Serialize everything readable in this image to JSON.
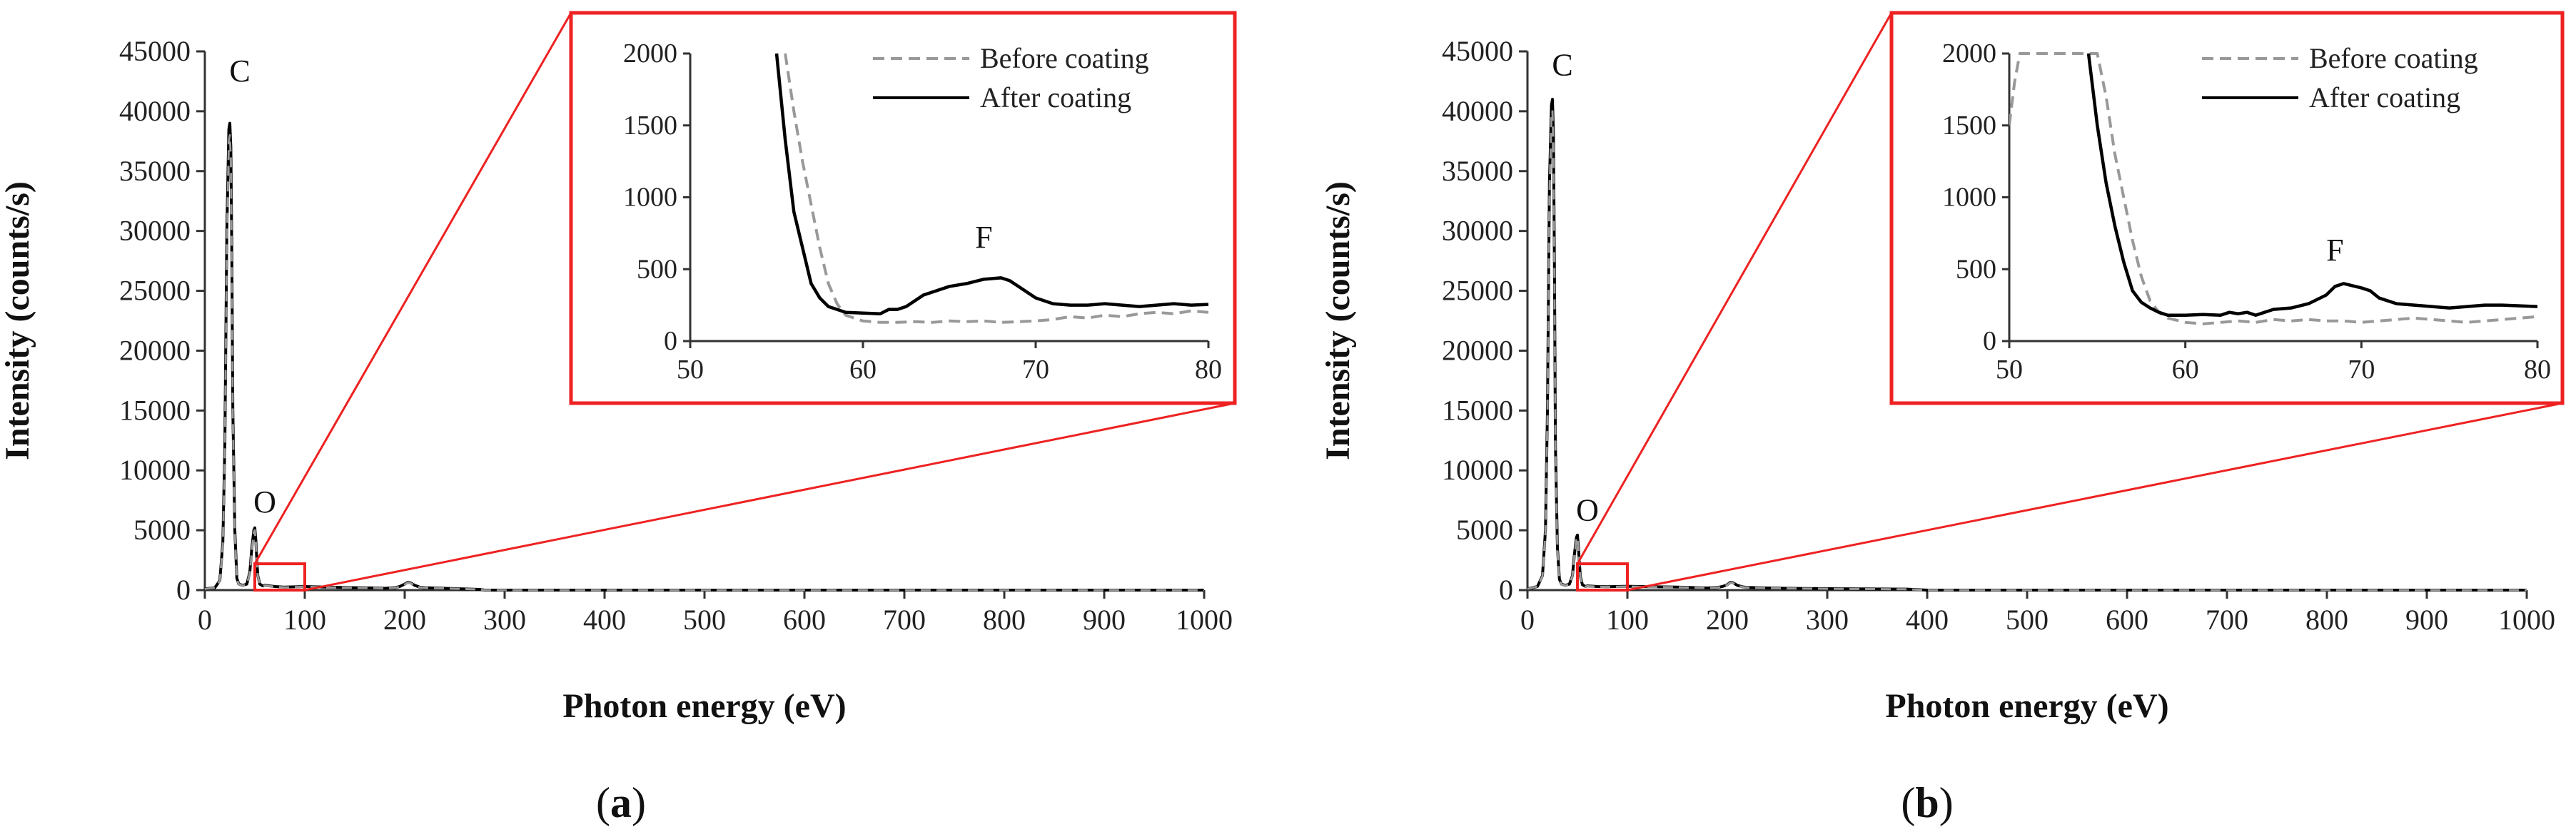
{
  "colors": {
    "after": "#000000",
    "before": "#999999",
    "zoom": "#ee2222",
    "axis": "#333333"
  },
  "chart_data": [
    {
      "type": "line",
      "panel": "a",
      "panel_label": "a",
      "xlabel": "Photon energy (eV)",
      "ylabel": "Intensity (counts/s)",
      "xlim": [
        0,
        1000
      ],
      "ylim": [
        0,
        45000
      ],
      "xticks": [
        0,
        100,
        200,
        300,
        400,
        500,
        600,
        700,
        800,
        900,
        1000
      ],
      "yticks": [
        0,
        5000,
        10000,
        15000,
        20000,
        25000,
        30000,
        35000,
        40000,
        45000
      ],
      "annotations": [
        {
          "label": "C",
          "x": 35,
          "y": 42500
        },
        {
          "label": "O",
          "x": 60,
          "y": 6500
        }
      ],
      "zoom_box": {
        "x": [
          50,
          100
        ],
        "y": [
          0,
          2200
        ]
      },
      "series": [
        {
          "name": "After coating",
          "style": "solid",
          "x": [
            0,
            10,
            15,
            18,
            20,
            22,
            24,
            25,
            26,
            27,
            28,
            30,
            32,
            34,
            38,
            42,
            45,
            47,
            49,
            50,
            51,
            52,
            53,
            55,
            58,
            60,
            70,
            80,
            100,
            120,
            150,
            170,
            180,
            190,
            195,
            200,
            203,
            206,
            210,
            215,
            220,
            240,
            260,
            275,
            280,
            1000
          ],
          "y": [
            100,
            200,
            800,
            4000,
            12000,
            30000,
            38500,
            39000,
            37000,
            28000,
            15000,
            5000,
            1000,
            500,
            400,
            500,
            1500,
            3500,
            5000,
            5200,
            4200,
            2500,
            1200,
            500,
            350,
            400,
            300,
            250,
            300,
            250,
            200,
            180,
            150,
            200,
            300,
            500,
            650,
            600,
            400,
            250,
            200,
            150,
            100,
            60,
            0,
            0
          ]
        },
        {
          "name": "Before coating",
          "style": "dashed",
          "x": [
            0,
            10,
            15,
            18,
            20,
            22,
            24,
            25,
            26,
            27,
            28,
            30,
            32,
            34,
            38,
            42,
            45,
            47,
            49,
            50,
            51,
            52,
            53,
            55,
            58,
            60,
            70,
            80,
            100,
            120,
            150,
            170,
            180,
            190,
            195,
            200,
            203,
            206,
            210,
            215,
            220,
            240,
            260,
            275,
            280,
            1000
          ],
          "y": [
            100,
            200,
            750,
            3800,
            11500,
            29000,
            37500,
            38000,
            36000,
            27000,
            14500,
            4800,
            950,
            480,
            380,
            480,
            1400,
            3300,
            4800,
            5000,
            4000,
            2400,
            1150,
            480,
            330,
            380,
            280,
            230,
            280,
            230,
            190,
            170,
            140,
            190,
            280,
            470,
            620,
            570,
            380,
            240,
            190,
            140,
            90,
            55,
            0,
            0
          ]
        }
      ],
      "inset": {
        "xlim": [
          50,
          80
        ],
        "ylim": [
          0,
          2000
        ],
        "xticks": [
          50,
          60,
          70,
          80
        ],
        "yticks": [
          0,
          500,
          1000,
          1500,
          2000
        ],
        "legend": [
          "Before coating",
          "After coating"
        ],
        "annotation": {
          "label": "F",
          "x": 67,
          "y": 650
        },
        "series": [
          {
            "name": "Before coating",
            "style": "dashed",
            "x": [
              55.5,
              56,
              56.5,
              57,
              57.5,
              58,
              58.5,
              59,
              60,
              61,
              62,
              63,
              64,
              65,
              66,
              67,
              68,
              69,
              70,
              71,
              72,
              73,
              74,
              75,
              76,
              77,
              78,
              79,
              80
            ],
            "y": [
              2000,
              1600,
              1250,
              950,
              650,
              400,
              260,
              180,
              140,
              130,
              130,
              135,
              130,
              140,
              135,
              140,
              130,
              135,
              140,
              150,
              170,
              160,
              180,
              170,
              190,
              200,
              190,
              210,
              200
            ]
          },
          {
            "name": "After coating",
            "style": "solid",
            "x": [
              55,
              55.5,
              56,
              56.5,
              57,
              57.5,
              58,
              58.5,
              59,
              60,
              61,
              61.5,
              62,
              62.5,
              63,
              63.5,
              64,
              65,
              66,
              67,
              68,
              68.5,
              69,
              70,
              71,
              72,
              73,
              74,
              75,
              76,
              77,
              78,
              79,
              80
            ],
            "y": [
              2000,
              1400,
              900,
              650,
              400,
              300,
              240,
              220,
              200,
              195,
              190,
              220,
              220,
              240,
              280,
              320,
              340,
              380,
              400,
              430,
              440,
              420,
              380,
              300,
              260,
              250,
              250,
              260,
              250,
              240,
              250,
              260,
              250,
              255
            ]
          }
        ]
      }
    },
    {
      "type": "line",
      "panel": "b",
      "panel_label": "b",
      "xlabel": "Photon energy (eV)",
      "ylabel": "Intensity (counts/s)",
      "xlim": [
        0,
        1000
      ],
      "ylim": [
        0,
        45000
      ],
      "xticks": [
        0,
        100,
        200,
        300,
        400,
        500,
        600,
        700,
        800,
        900,
        1000
      ],
      "yticks": [
        0,
        5000,
        10000,
        15000,
        20000,
        25000,
        30000,
        35000,
        40000,
        45000
      ],
      "annotations": [
        {
          "label": "C",
          "x": 35,
          "y": 43000
        },
        {
          "label": "O",
          "x": 60,
          "y": 5800
        }
      ],
      "zoom_box": {
        "x": [
          50,
          100
        ],
        "y": [
          0,
          2200
        ]
      },
      "series": [
        {
          "name": "After coating",
          "style": "solid",
          "x": [
            0,
            10,
            15,
            18,
            20,
            22,
            24,
            25,
            26,
            27,
            28,
            30,
            32,
            34,
            38,
            42,
            45,
            47,
            49,
            50,
            51,
            52,
            53,
            55,
            58,
            60,
            70,
            80,
            100,
            120,
            150,
            170,
            180,
            190,
            195,
            200,
            203,
            206,
            210,
            215,
            220,
            240,
            260,
            300,
            380,
            400,
            1000
          ],
          "y": [
            100,
            300,
            1200,
            5000,
            15000,
            34000,
            40500,
            41000,
            38000,
            27000,
            12000,
            3500,
            900,
            500,
            400,
            500,
            1200,
            3000,
            4400,
            4600,
            3600,
            2200,
            1100,
            450,
            300,
            350,
            300,
            280,
            320,
            280,
            250,
            200,
            180,
            220,
            300,
            450,
            650,
            600,
            400,
            280,
            220,
            180,
            150,
            120,
            80,
            0,
            0
          ]
        },
        {
          "name": "Before coating",
          "style": "dashed",
          "x": [
            0,
            10,
            15,
            18,
            20,
            22,
            24,
            25,
            26,
            27,
            28,
            30,
            32,
            34,
            38,
            42,
            45,
            47,
            49,
            50,
            51,
            52,
            53,
            55,
            58,
            60,
            70,
            80,
            100,
            120,
            150,
            170,
            180,
            190,
            195,
            200,
            203,
            206,
            210,
            215,
            220,
            240,
            260,
            300,
            380,
            400,
            1000
          ],
          "y": [
            100,
            300,
            1150,
            4800,
            14500,
            33000,
            39500,
            40000,
            37000,
            26000,
            11500,
            3300,
            850,
            480,
            380,
            480,
            1150,
            2900,
            4200,
            4400,
            3400,
            2100,
            1050,
            430,
            280,
            330,
            280,
            260,
            300,
            260,
            240,
            190,
            170,
            210,
            280,
            430,
            620,
            570,
            380,
            260,
            210,
            170,
            140,
            110,
            70,
            0,
            0
          ]
        }
      ],
      "inset": {
        "xlim": [
          50,
          80
        ],
        "ylim": [
          0,
          2000
        ],
        "xticks": [
          50,
          60,
          70,
          80
        ],
        "yticks": [
          0,
          500,
          1000,
          1500,
          2000
        ],
        "legend": [
          "Before coating",
          "After coating"
        ],
        "annotation": {
          "label": "F",
          "x": 68.5,
          "y": 560
        },
        "series": [
          {
            "name": "Before coating",
            "style": "dashed",
            "x": [
              50,
              50.3,
              50.6,
              55,
              55.5,
              56,
              56.5,
              57,
              57.5,
              58,
              58.5,
              59,
              60,
              61,
              62,
              63,
              64,
              65,
              66,
              67,
              68,
              69,
              70,
              71,
              72,
              73,
              74,
              75,
              76,
              77,
              78,
              79,
              80
            ],
            "y": [
              1500,
              1800,
              2000,
              2000,
              1700,
              1300,
              1000,
              700,
              450,
              280,
              200,
              160,
              130,
              120,
              130,
              140,
              130,
              150,
              140,
              150,
              140,
              140,
              130,
              140,
              150,
              160,
              150,
              140,
              130,
              140,
              150,
              160,
              170
            ]
          },
          {
            "name": "After coating",
            "style": "solid",
            "x": [
              54.5,
              55,
              55.5,
              56,
              56.5,
              57,
              57.5,
              58,
              58.5,
              59,
              60,
              61,
              62,
              62.5,
              63,
              63.5,
              64,
              64.5,
              65,
              66,
              67,
              68,
              68.5,
              69,
              70,
              70.5,
              71,
              72,
              73,
              74,
              75,
              76,
              77,
              78,
              79,
              80
            ],
            "y": [
              2000,
              1500,
              1100,
              800,
              550,
              350,
              270,
              230,
              200,
              180,
              180,
              185,
              180,
              200,
              190,
              200,
              180,
              200,
              220,
              230,
              260,
              320,
              380,
              400,
              370,
              350,
              300,
              260,
              250,
              240,
              230,
              240,
              250,
              250,
              245,
              240
            ]
          }
        ]
      }
    }
  ]
}
